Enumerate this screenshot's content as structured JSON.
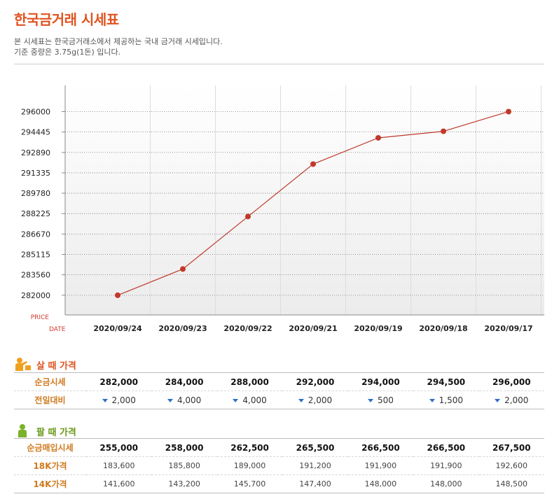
{
  "header": {
    "title": "한국금거래 시세표",
    "desc_line1": "본 시세표는 한국금거래소에서 제공하는 국내 금거래 시세입니다.",
    "desc_line2": "기준 중량은 3.75g(1돈) 입니다."
  },
  "chart_data": {
    "type": "line",
    "categories": [
      "2020/09/24",
      "2020/09/23",
      "2020/09/22",
      "2020/09/21",
      "2020/09/19",
      "2020/09/18",
      "2020/09/17"
    ],
    "series": [
      {
        "values": [
          282000,
          284000,
          288000,
          292000,
          294000,
          294500,
          296000
        ]
      }
    ],
    "y_ticks": [
      296000,
      294445,
      292890,
      291335,
      289780,
      288225,
      286670,
      285115,
      283560,
      282000
    ],
    "ylim": [
      280500,
      298000
    ],
    "ylabel": "PRICE",
    "xlabel": "DATE",
    "grid": true,
    "line_color": "#c0392b"
  },
  "buy": {
    "label": "살 때 가격",
    "rows": [
      {
        "name": "순금시세",
        "values": [
          "282,000",
          "284,000",
          "288,000",
          "292,000",
          "294,000",
          "294,500",
          "296,000"
        ]
      },
      {
        "name": "전일대비",
        "values": [
          "2,000",
          "4,000",
          "4,000",
          "2,000",
          "500",
          "1,500",
          "2,000"
        ]
      }
    ]
  },
  "sell": {
    "label": "팔 때 가격",
    "rows": [
      {
        "name": "순금매입시세",
        "values": [
          "255,000",
          "258,000",
          "262,500",
          "265,500",
          "266,500",
          "266,500",
          "267,500"
        ]
      },
      {
        "name": "18K가격",
        "values": [
          "183,600",
          "185,800",
          "189,000",
          "191,200",
          "191,900",
          "191,900",
          "192,600"
        ]
      },
      {
        "name": "14K가격",
        "values": [
          "141,600",
          "143,200",
          "145,700",
          "147,400",
          "148,000",
          "148,000",
          "148,500"
        ]
      }
    ]
  },
  "colors": {
    "accent": "#e0531f",
    "buy_icon": "#f0a020",
    "sell_icon": "#7ab32a",
    "down_arrow": "#2f6fc7"
  }
}
